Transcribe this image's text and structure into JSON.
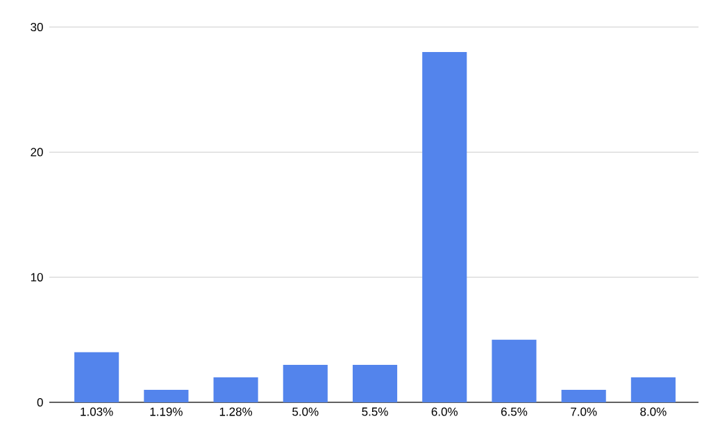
{
  "chart_data": {
    "type": "bar",
    "categories": [
      "1.03%",
      "1.19%",
      "1.28%",
      "5.0%",
      "5.5%",
      "6.0%",
      "6.5%",
      "7.0%",
      "8.0%"
    ],
    "values": [
      4,
      1,
      2,
      3,
      3,
      28,
      5,
      1,
      2
    ],
    "color": "#5384ec",
    "ylim": [
      0,
      30
    ],
    "yticks": [
      0,
      10,
      20,
      30
    ],
    "grid": "y"
  }
}
